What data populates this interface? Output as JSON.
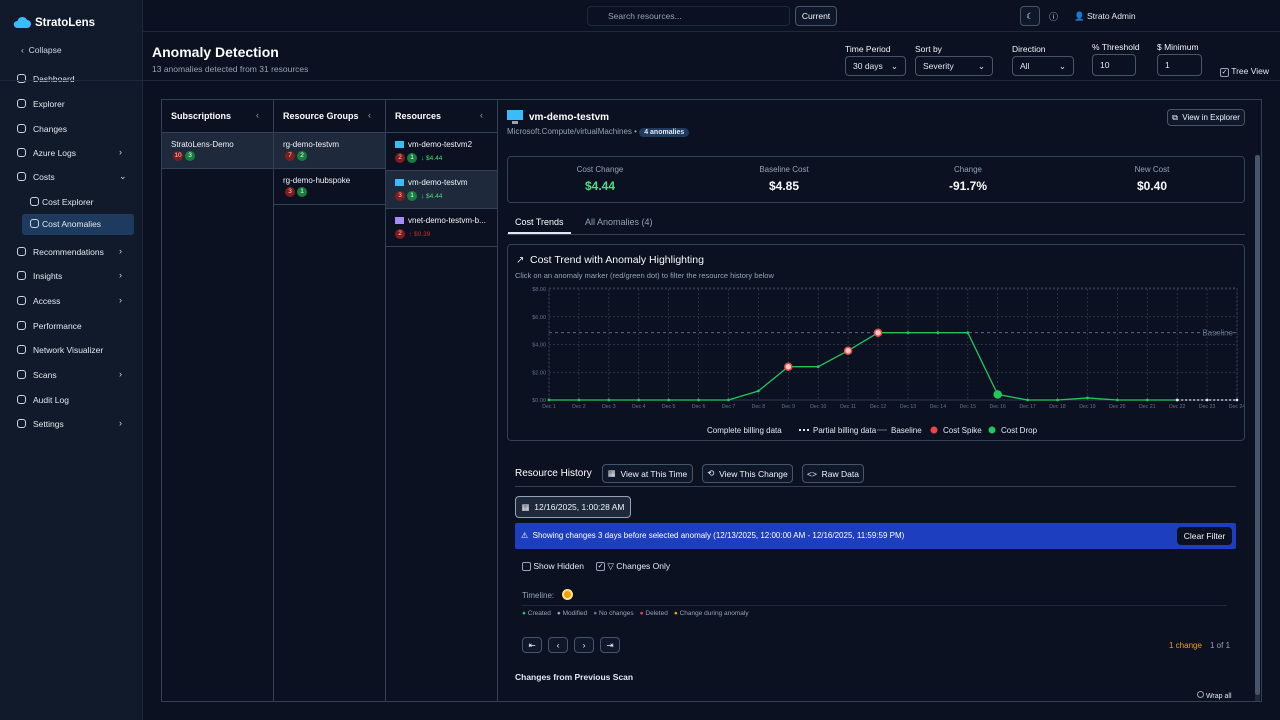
{
  "app": {
    "brand": "StratoLens",
    "collapse": "Collapse"
  },
  "nav": [
    "Dashboard",
    "Explorer",
    "Changes",
    "Azure Logs",
    "Costs",
    "Cost Explorer",
    "Cost Anomalies",
    "Recommendations",
    "Insights",
    "Access",
    "Performance",
    "Network Visualizer",
    "Scans",
    "Audit Log",
    "Settings"
  ],
  "topbar": {
    "search": "Search resources...",
    "scope": "Current",
    "user": "Strato Admin"
  },
  "header": {
    "title": "Anomaly Detection",
    "subtitle": "13 anomalies detected from 31 resources"
  },
  "filters": {
    "time_period": {
      "label": "Time Period",
      "value": "30 days"
    },
    "sort_by": {
      "label": "Sort by",
      "value": "Severity"
    },
    "direction": {
      "label": "Direction",
      "value": "All"
    },
    "threshold": {
      "label": "% Threshold",
      "value": "10"
    },
    "minimum": {
      "label": "$ Minimum",
      "value": "1"
    },
    "tree_view": "Tree View"
  },
  "columns": [
    {
      "title": "Subscriptions",
      "items": [
        {
          "name": "StratoLens-Demo",
          "red": "10",
          "green": "3"
        }
      ]
    },
    {
      "title": "Resource Groups",
      "items": [
        {
          "name": "rg-demo-testvm",
          "red": "7",
          "green": "2"
        },
        {
          "name": "rg-demo-hubspoke",
          "red": "3",
          "green": "1"
        }
      ]
    },
    {
      "title": "Resources",
      "items": [
        {
          "name": "vm-demo-testvm2",
          "red": "2",
          "green": "1",
          "cost": "↓ $4.44"
        },
        {
          "name": "vm-demo-testvm",
          "red": "3",
          "green": "1",
          "cost": "↓ $4.44"
        },
        {
          "name": "vnet-demo-testvm-b...",
          "red": "2",
          "cost": "↑ $0.39"
        }
      ]
    }
  ],
  "detail": {
    "name": "vm-demo-testvm",
    "type": "Microsoft.Compute/virtualMachines",
    "anomalies": "4 anomalies",
    "view_button": "View in Explorer",
    "stats": [
      {
        "label": "Cost Change",
        "value": "$4.44"
      },
      {
        "label": "Baseline Cost",
        "value": "$4.85"
      },
      {
        "label": "Change",
        "value": "-91.7%"
      },
      {
        "label": "New Cost",
        "value": "$0.40"
      }
    ],
    "tabs": [
      "Cost Trends",
      "All Anomalies (4)"
    ]
  },
  "chart_data": {
    "type": "line",
    "title": "Cost Trend with Anomaly Highlighting",
    "subtitle": "Click on an anomaly marker (red/green dot) to filter the resource history below",
    "categories": [
      "Dec 1",
      "Dec 2",
      "Dec 3",
      "Dec 4",
      "Dec 5",
      "Dec 6",
      "Dec 7",
      "Dec 8",
      "Dec 9",
      "Dec 10",
      "Dec 11",
      "Dec 12",
      "Dec 13",
      "Dec 14",
      "Dec 15",
      "Dec 16",
      "Dec 17",
      "Dec 18",
      "Dec 19",
      "Dec 20",
      "Dec 21",
      "Dec 22",
      "Dec 23",
      "Dec 24"
    ],
    "ylim": [
      0,
      8
    ],
    "yticks": [
      {
        "value": 0,
        "label": "$0.00"
      },
      {
        "value": 2,
        "label": "$2.00"
      },
      {
        "value": 4,
        "label": "$4.00"
      },
      {
        "value": 6,
        "label": "$6.00"
      },
      {
        "value": 8,
        "label": "$8.00"
      }
    ],
    "grid": true,
    "baseline": {
      "value": 4.85,
      "label": "Baseline",
      "legend": "Baseline",
      "color": "#64748b"
    },
    "series": [
      {
        "name": "Complete billing data",
        "color": "#22c55e",
        "style": "line",
        "values": [
          0,
          0,
          0,
          0,
          0,
          0,
          0,
          0.65,
          2.4,
          2.4,
          3.55,
          4.85,
          4.85,
          4.85,
          4.85,
          0.4,
          0,
          0,
          0.15,
          0,
          0,
          0,
          null,
          null
        ]
      },
      {
        "name": "Partial billing data",
        "color": "#e2e8f0",
        "style": "dashed",
        "values": [
          null,
          null,
          null,
          null,
          null,
          null,
          null,
          null,
          null,
          null,
          null,
          null,
          null,
          null,
          null,
          null,
          null,
          null,
          null,
          null,
          null,
          0,
          0,
          0
        ]
      },
      {
        "name": "Cost Spike",
        "color": "#ef4444",
        "style": "marker",
        "values": [
          null,
          null,
          null,
          null,
          null,
          null,
          null,
          null,
          2.4,
          null,
          3.55,
          4.85,
          null,
          null,
          null,
          null,
          null,
          null,
          null,
          null,
          null,
          null,
          null,
          null
        ]
      },
      {
        "name": "Cost Drop",
        "color": "#22c55e",
        "style": "marker",
        "values": [
          null,
          null,
          null,
          null,
          null,
          null,
          null,
          null,
          null,
          null,
          null,
          null,
          null,
          null,
          null,
          0.4,
          null,
          null,
          null,
          null,
          null,
          null,
          null,
          null
        ]
      }
    ]
  },
  "history": {
    "title": "Resource History",
    "buttons": [
      "View at This Time",
      "View This Change",
      "Raw Data"
    ],
    "date": "12/16/2025, 1:00:28 AM",
    "banner": "Showing changes 3 days before selected anomaly (12/13/2025, 12:00:00 AM - 12/16/2025, 11:59:59 PM)",
    "clear": "Clear Filter",
    "show_hidden": "Show Hidden",
    "changes_only": "Changes Only",
    "timeline": "Timeline:",
    "legend": [
      "Created",
      "Modified",
      "No changes",
      "Deleted",
      "Change during anomaly"
    ],
    "count": "1 change",
    "pages": "1 of 1",
    "section": "Changes from Previous Scan",
    "wrap": "Wrap all"
  }
}
